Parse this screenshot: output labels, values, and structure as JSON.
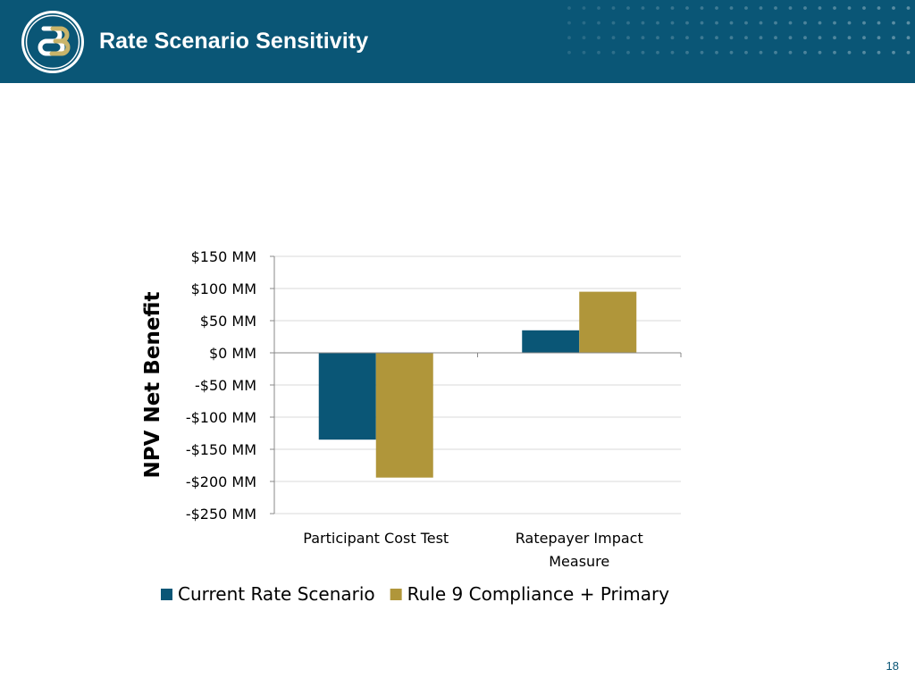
{
  "header": {
    "title": "Rate Scenario Sensitivity",
    "background_color": "#0a5676",
    "logo_icon": "e3-logo-icon"
  },
  "page_number": "18",
  "chart_data": {
    "type": "bar",
    "title": "",
    "xlabel": "",
    "ylabel": "NPV Net Benefit",
    "categories": [
      "Participant Cost Test",
      "Ratepayer Impact Measure"
    ],
    "series": [
      {
        "name": "Current Rate Scenario",
        "color": "#0a5676",
        "values": [
          -135,
          35
        ]
      },
      {
        "name": "Rule 9 Compliance + Primary",
        "color": "#b0963a",
        "values": [
          -194,
          95
        ]
      }
    ],
    "ylim": [
      -250,
      150
    ],
    "yticks": [
      150,
      100,
      50,
      0,
      -50,
      -100,
      -150,
      -200,
      -250
    ],
    "ytick_labels": [
      "$150  MM",
      "$100  MM",
      "$50  MM",
      "$0  MM",
      "-$50  MM",
      "-$100  MM",
      "-$150  MM",
      "-$200  MM",
      "-$250  MM"
    ],
    "grid": true,
    "legend": "bottom"
  }
}
